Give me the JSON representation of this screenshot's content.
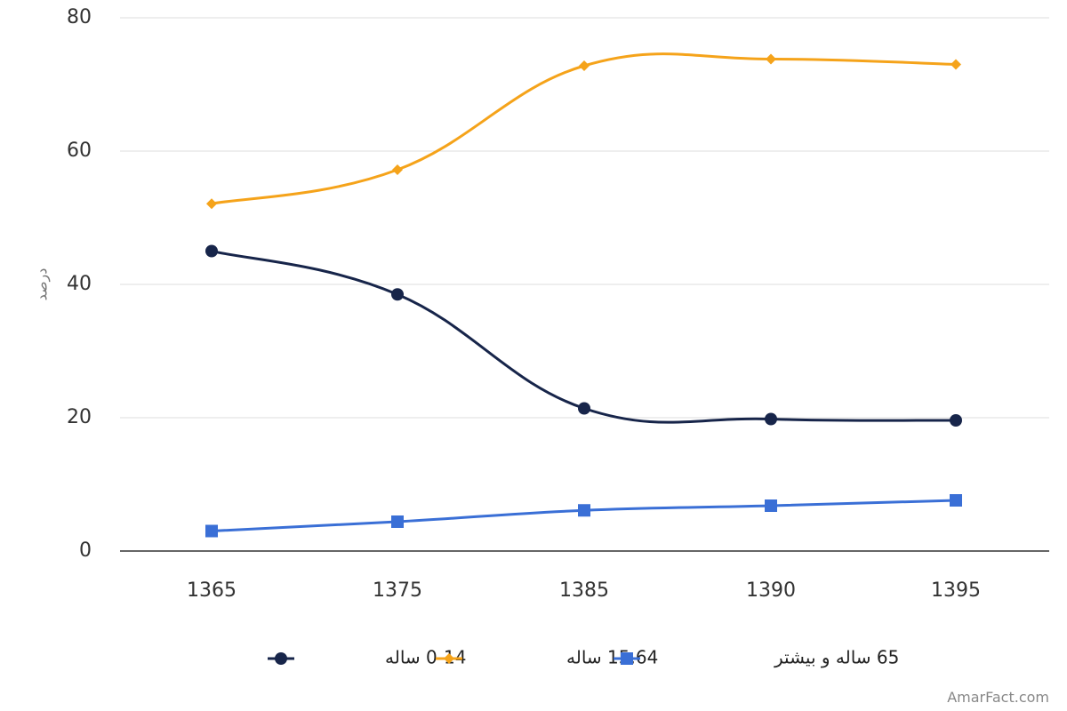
{
  "chart_data": {
    "type": "line",
    "categories": [
      "1365",
      "1375",
      "1385",
      "1390",
      "1395"
    ],
    "ylabel": "درصد",
    "ylim": [
      0,
      80
    ],
    "yticks": [
      0,
      20,
      40,
      60,
      80
    ],
    "grid": true,
    "legend_position": "bottom",
    "series": [
      {
        "name": "0-14 ساله",
        "values": [
          45.0,
          38.5,
          21.4,
          19.8,
          19.6
        ],
        "color": "#17254a",
        "marker": "circle"
      },
      {
        "name": "15.64 ساله",
        "values": [
          52.1,
          57.2,
          72.8,
          73.8,
          73.0
        ],
        "color": "#f5a31a",
        "marker": "diamond"
      },
      {
        "name": "65 ساله و بیشتر",
        "values": [
          3.0,
          4.4,
          6.1,
          6.8,
          7.6
        ],
        "color": "#3a6fd6",
        "marker": "square"
      }
    ]
  },
  "watermark": "AmarFact.com"
}
